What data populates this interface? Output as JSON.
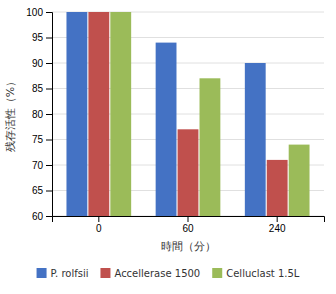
{
  "chart_data": {
    "type": "bar",
    "categories": [
      "0",
      "60",
      "240"
    ],
    "series": [
      {
        "name": "P. rolfsii",
        "color": "#4472C4",
        "values": [
          100,
          94,
          90
        ]
      },
      {
        "name": "Accellerase 1500",
        "color": "#C0504D",
        "values": [
          100,
          77,
          71
        ]
      },
      {
        "name": "Celluclast 1.5L",
        "color": "#9BBB59",
        "values": [
          100,
          87,
          74
        ]
      }
    ],
    "xlabel": "時間（分）",
    "ylabel": "残存活性（%）",
    "ylim": [
      60,
      100
    ],
    "yticks": [
      60,
      65,
      70,
      75,
      80,
      85,
      90,
      95,
      100
    ],
    "grid": true,
    "legend": "bottom"
  }
}
